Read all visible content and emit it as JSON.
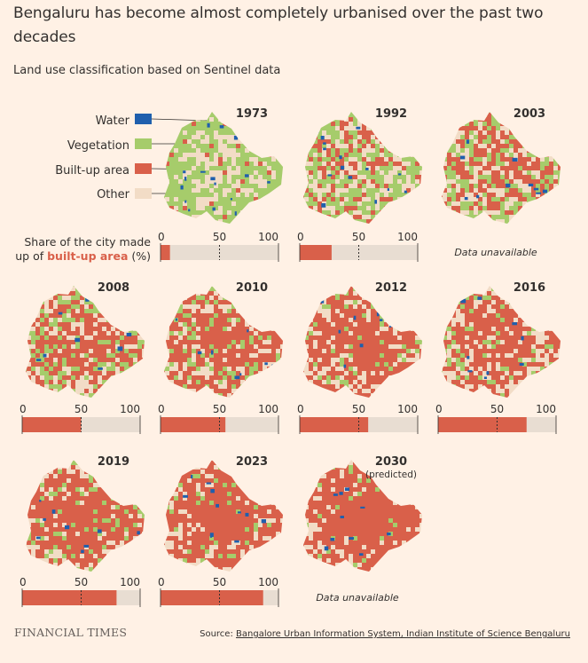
{
  "title": "Bengaluru has become almost completely urbanised over the past two decades",
  "subtitle": "Land use classification based on Sentinel data",
  "legend": {
    "items": [
      {
        "label": "Water",
        "color": "#1F5FAD"
      },
      {
        "label": "Vegetation",
        "color": "#A6CC6B"
      },
      {
        "label": "Built-up area",
        "color": "#D9604A"
      },
      {
        "label": "Other",
        "color": "#F2DCC6"
      }
    ]
  },
  "share_label": {
    "line1": "Share of the city made",
    "line2_pre": "up of ",
    "line2_bold": "built-up area",
    "line2_post": " (%)"
  },
  "colors": {
    "builtup": "#D9604A",
    "vegetation": "#A6CC6B",
    "water": "#1F5FAD",
    "other": "#F2DCC6",
    "bar_bg": "#E8DDD2",
    "background": "#FFF1E5"
  },
  "chart_data": {
    "type": "bar",
    "title": "Bengaluru has become almost completely urbanised over the past two decades",
    "subtitle": "Land use classification based on Sentinel data",
    "x_ticks": [
      "0",
      "50",
      "100"
    ],
    "xlim": [
      0,
      100
    ],
    "unavailable_text": "Data unavailable",
    "panels": [
      {
        "year": "1973",
        "note": "",
        "builtup": 8,
        "water": 0.03,
        "green": 0.62,
        "red": 0.06
      },
      {
        "year": "1992",
        "note": "",
        "builtup": 27,
        "water": 0.03,
        "green": 0.45,
        "red": 0.28
      },
      {
        "year": "2003",
        "note": "",
        "builtup": null,
        "water": 0.02,
        "green": 0.28,
        "red": 0.45
      },
      {
        "year": "2008",
        "note": "",
        "builtup": 50,
        "water": 0.015,
        "green": 0.25,
        "red": 0.52
      },
      {
        "year": "2010",
        "note": "",
        "builtup": 55,
        "water": 0.015,
        "green": 0.2,
        "red": 0.62
      },
      {
        "year": "2012",
        "note": "",
        "builtup": 58,
        "water": 0.015,
        "green": 0.12,
        "red": 0.72
      },
      {
        "year": "2016",
        "note": "",
        "builtup": 75,
        "water": 0.02,
        "green": 0.12,
        "red": 0.68
      },
      {
        "year": "2019",
        "note": "",
        "builtup": 80,
        "water": 0.02,
        "green": 0.12,
        "red": 0.74
      },
      {
        "year": "2023",
        "note": "",
        "builtup": 87,
        "water": 0.02,
        "green": 0.08,
        "red": 0.82
      },
      {
        "year": "2030",
        "note": "(predicted)",
        "builtup": null,
        "water": 0.02,
        "green": 0.05,
        "red": 0.88
      }
    ]
  },
  "footer": {
    "brand": "FINANCIAL TIMES",
    "source_prefix": "Source: ",
    "source_link": "Bangalore Urban Information System, Indian Institute of Science Bengaluru"
  }
}
